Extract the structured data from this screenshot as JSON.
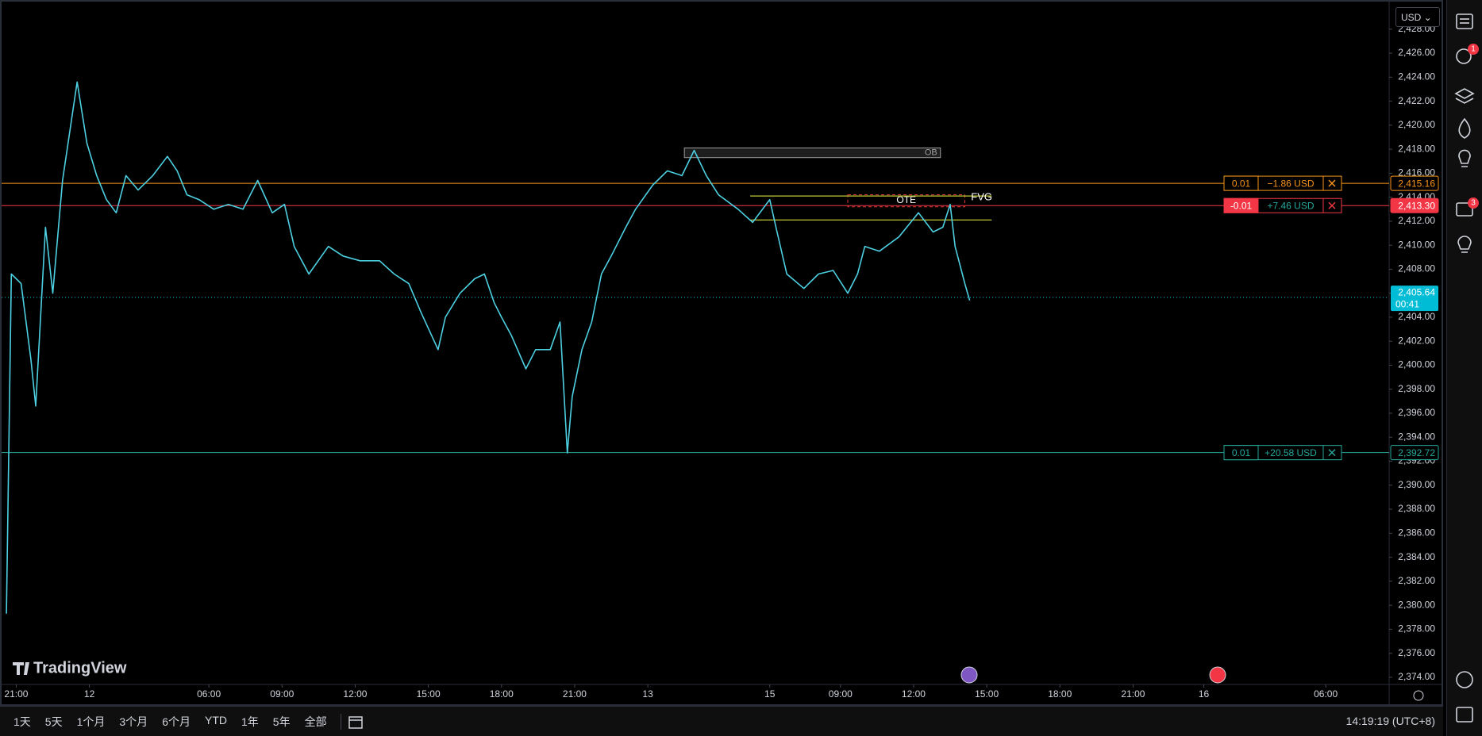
{
  "chart_data": {
    "type": "line",
    "color": "#4dd0e1",
    "x": [
      -0.4,
      -0.2,
      0.2,
      0.6,
      0.8,
      1.2,
      1.5,
      1.9,
      2.3,
      2.5,
      2.9,
      3.3,
      3.7,
      4.1,
      4.5,
      5.0,
      5.6,
      6.2,
      6.6,
      7.0,
      7.5,
      8.1,
      8.7,
      9.3,
      9.9,
      10.5,
      11.0,
      11.4,
      12.0,
      12.8,
      13.4,
      14.1,
      14.9,
      15.5,
      16.1,
      16.6,
      17.3,
      17.6,
      18.2,
      18.8,
      19.2,
      19.6,
      19.9,
      20.3,
      20.9,
      21.3,
      21.9,
      22.3,
      22.6,
      22.8,
      23.2,
      23.6,
      24.0,
      24.4,
      25.0,
      25.4,
      26.1,
      26.7,
      27.3,
      27.8,
      28.3,
      28.8,
      29.6,
      30.2,
      30.9,
      31.2,
      31.6,
      32.3,
      32.9,
      33.5,
      34.1,
      34.5,
      34.8,
      35.4,
      36.2,
      37.0,
      37.6,
      38.0,
      38.3,
      38.5,
      38.9,
      39.1
    ],
    "values": [
      2379.3,
      2407.6,
      2406.8,
      2400.5,
      2396.6,
      2411.5,
      2406.0,
      2415.4,
      2420.9,
      2423.6,
      2418.5,
      2415.8,
      2413.8,
      2412.7,
      2415.8,
      2414.6,
      2415.8,
      2417.4,
      2416.2,
      2414.2,
      2413.8,
      2413.0,
      2413.4,
      2413.0,
      2415.4,
      2412.7,
      2413.4,
      2409.9,
      2407.6,
      2409.9,
      2409.1,
      2408.7,
      2408.7,
      2407.6,
      2406.8,
      2404.4,
      2401.3,
      2404.0,
      2406.0,
      2407.2,
      2407.6,
      2405.2,
      2404.0,
      2402.5,
      2399.7,
      2401.3,
      2401.3,
      2403.6,
      2392.7,
      2397.4,
      2401.3,
      2403.6,
      2407.6,
      2409.1,
      2411.5,
      2413.0,
      2415.0,
      2416.2,
      2415.8,
      2417.9,
      2415.8,
      2414.2,
      2413.0,
      2411.9,
      2413.8,
      2411.1,
      2407.6,
      2406.4,
      2407.6,
      2407.9,
      2406.0,
      2407.6,
      2409.9,
      2409.5,
      2410.7,
      2412.7,
      2411.1,
      2411.5,
      2413.4,
      2409.9,
      2406.8,
      2405.4
    ],
    "xlim": [
      -0.6,
      56.3
    ],
    "xticks": [
      {
        "value": 0,
        "label": "21:00"
      },
      {
        "value": 3,
        "label": "12"
      },
      {
        "value": 7.9,
        "label": "06:00"
      },
      {
        "value": 10.9,
        "label": "09:00"
      },
      {
        "value": 13.9,
        "label": "12:00"
      },
      {
        "value": 16.9,
        "label": "15:00"
      },
      {
        "value": 19.9,
        "label": "18:00"
      },
      {
        "value": 22.9,
        "label": "21:00"
      },
      {
        "value": 25.9,
        "label": "13"
      },
      {
        "value": 30.9,
        "label": "15"
      },
      {
        "value": 33.8,
        "label": "09:00"
      },
      {
        "value": 36.8,
        "label": "12:00"
      },
      {
        "value": 39.8,
        "label": "15:00"
      },
      {
        "value": 42.8,
        "label": "18:00"
      },
      {
        "value": 45.8,
        "label": "21:00"
      },
      {
        "value": 48.7,
        "label": "16"
      },
      {
        "value": 53.7,
        "label": "06:00"
      }
    ],
    "ylim": [
      2373.4,
      2430.3
    ],
    "yticks": [
      {
        "value": 2374,
        "label": "2,374.00"
      },
      {
        "value": 2376,
        "label": "2,376.00"
      },
      {
        "value": 2378,
        "label": "2,378.00"
      },
      {
        "value": 2380,
        "label": "2,380.00"
      },
      {
        "value": 2382,
        "label": "2,382.00"
      },
      {
        "value": 2384,
        "label": "2,384.00"
      },
      {
        "value": 2386,
        "label": "2,386.00"
      },
      {
        "value": 2388,
        "label": "2,388.00"
      },
      {
        "value": 2390,
        "label": "2,390.00"
      },
      {
        "value": 2392,
        "label": "2,392.00"
      },
      {
        "value": 2394,
        "label": "2,394.00"
      },
      {
        "value": 2396,
        "label": "2,396.00"
      },
      {
        "value": 2398,
        "label": "2,398.00"
      },
      {
        "value": 2400,
        "label": "2,400.00"
      },
      {
        "value": 2402,
        "label": "2,402.00"
      },
      {
        "value": 2404,
        "label": "2,404.00"
      },
      {
        "value": 2406,
        "label": "2,406.00"
      },
      {
        "value": 2408,
        "label": "2,408.00"
      },
      {
        "value": 2410,
        "label": "2,410.00"
      },
      {
        "value": 2412,
        "label": "2,412.00"
      },
      {
        "value": 2414,
        "label": "2,414.00"
      },
      {
        "value": 2416,
        "label": "2,416.00"
      },
      {
        "value": 2418,
        "label": "2,418.00"
      },
      {
        "value": 2420,
        "label": "2,420.00"
      },
      {
        "value": 2422,
        "label": "2,422.00"
      },
      {
        "value": 2424,
        "label": "2,424.00"
      },
      {
        "value": 2426,
        "label": "2,426.00"
      },
      {
        "value": 2428,
        "label": "2,428.00"
      }
    ],
    "last_price": {
      "value": 2405.64,
      "label": "2,405.64",
      "countdown": "00:41",
      "color": "#00bcd4"
    },
    "orders": [
      {
        "price": {
          "value": 2415.16,
          "label": "2,415.16"
        },
        "qty": "0.01",
        "pnl": "−1.86 USD",
        "color": "#f7931a",
        "qty_filled": false
      },
      {
        "price": {
          "value": 2413.3,
          "label": "2,413.30"
        },
        "qty": "-0.01",
        "pnl": "+7.46 USD",
        "color": "#f23645",
        "qty_filled": true
      },
      {
        "price": {
          "value": 2392.72,
          "label": "2,392.72"
        },
        "qty": "0.01",
        "pnl": "+20.58 USD",
        "color": "#26a69a",
        "qty_filled": false
      }
    ],
    "zones": [
      {
        "label": "OB",
        "x": [
          27.4,
          37.9
        ],
        "y": [
          2417.3,
          2418.1
        ],
        "color": "#9e9e9e"
      },
      {
        "label": "OTE",
        "x": [
          34.1,
          38.9
        ],
        "y": [
          2413.2,
          2414.2
        ],
        "color": "#e53935"
      },
      {
        "label": "FVG",
        "x": [
          30.1,
          40.0
        ],
        "y": [
          2412.1,
          2414.1
        ],
        "color": "#c0ca33"
      }
    ],
    "currency": "USD"
  },
  "toolbar": {
    "ranges": [
      "1天",
      "5天",
      "1个月",
      "3个月",
      "6个月",
      "YTD",
      "1年",
      "5年",
      "全部"
    ],
    "clock": "14:19:19 (UTC+8)"
  },
  "brand": "TradingView",
  "sidebar": {
    "badges": [
      "1",
      "3"
    ]
  }
}
